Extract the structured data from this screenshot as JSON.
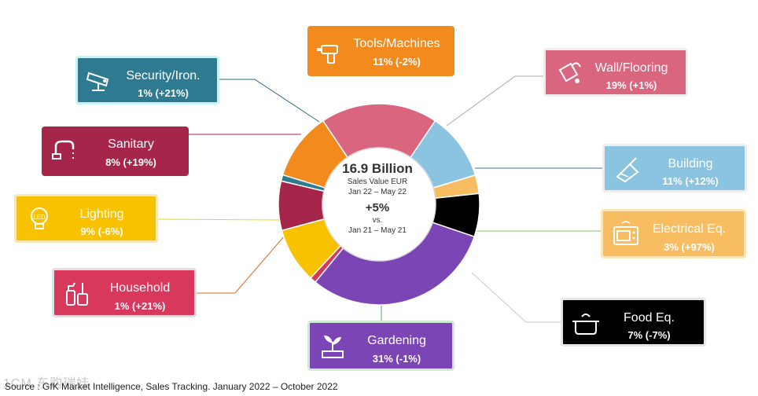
{
  "chart_data": {
    "type": "pie",
    "variant": "donut",
    "center": {
      "total": "16.9 Billion",
      "unit": "Sales Value EUR",
      "period": "Jan 22 – May 22",
      "growth": "+5%",
      "vs": "vs.",
      "prior_period": "Jan 21 – May 21"
    },
    "slices": [
      {
        "key": "tools",
        "name": "Tools/Machines",
        "share": 11,
        "change": "-2%",
        "label": "11% (-2%)",
        "color": "#f28a1e",
        "icon": "drill-icon"
      },
      {
        "key": "wall",
        "name": "Wall/Flooring",
        "share": 19,
        "change": "+1%",
        "label": "19% (+1%)",
        "color": "#d9657f",
        "icon": "paint-bucket-icon"
      },
      {
        "key": "building",
        "name": "Building",
        "share": 11,
        "change": "+12%",
        "label": "11% (+12%)",
        "color": "#8ac4e0",
        "icon": "trowel-icon"
      },
      {
        "key": "electrical",
        "name": "Electrical Eq.",
        "share": 3,
        "change": "+97%",
        "label": "3% (+97%)",
        "color": "#f8bd60",
        "icon": "microwave-icon"
      },
      {
        "key": "food",
        "name": "Food Eq.",
        "share": 7,
        "change": "-7%",
        "label": "7% (-7%)",
        "color": "#000000",
        "icon": "cooking-pot-icon"
      },
      {
        "key": "gardening",
        "name": "Gardening",
        "share": 31,
        "change": "-1%",
        "label": "31% (-1%)",
        "color": "#7b45b5",
        "icon": "plant-icon"
      },
      {
        "key": "household",
        "name": "Household",
        "share": 1,
        "change": "+21%",
        "label": "1% (+21%)",
        "color": "#d8385c",
        "icon": "cleaning-supplies-icon"
      },
      {
        "key": "lighting",
        "name": "Lighting",
        "share": 9,
        "change": "-6%",
        "label": "9% (-6%)",
        "color": "#f8c200",
        "icon": "led-bulb-icon"
      },
      {
        "key": "sanitary",
        "name": "Sanitary",
        "share": 8,
        "change": "+19%",
        "label": "8% (+19%)",
        "color": "#a6254a",
        "icon": "faucet-icon"
      },
      {
        "key": "security",
        "name": "Security/Iron.",
        "share": 1,
        "change": "+21%",
        "label": "1% (+21%)",
        "color": "#2e7b91",
        "icon": "security-camera-icon"
      }
    ],
    "source": "Source : GfK Market Intelligence, Sales Tracking. January 2022 – October 2022"
  },
  "watermark": "1CM 东购瑞娃"
}
